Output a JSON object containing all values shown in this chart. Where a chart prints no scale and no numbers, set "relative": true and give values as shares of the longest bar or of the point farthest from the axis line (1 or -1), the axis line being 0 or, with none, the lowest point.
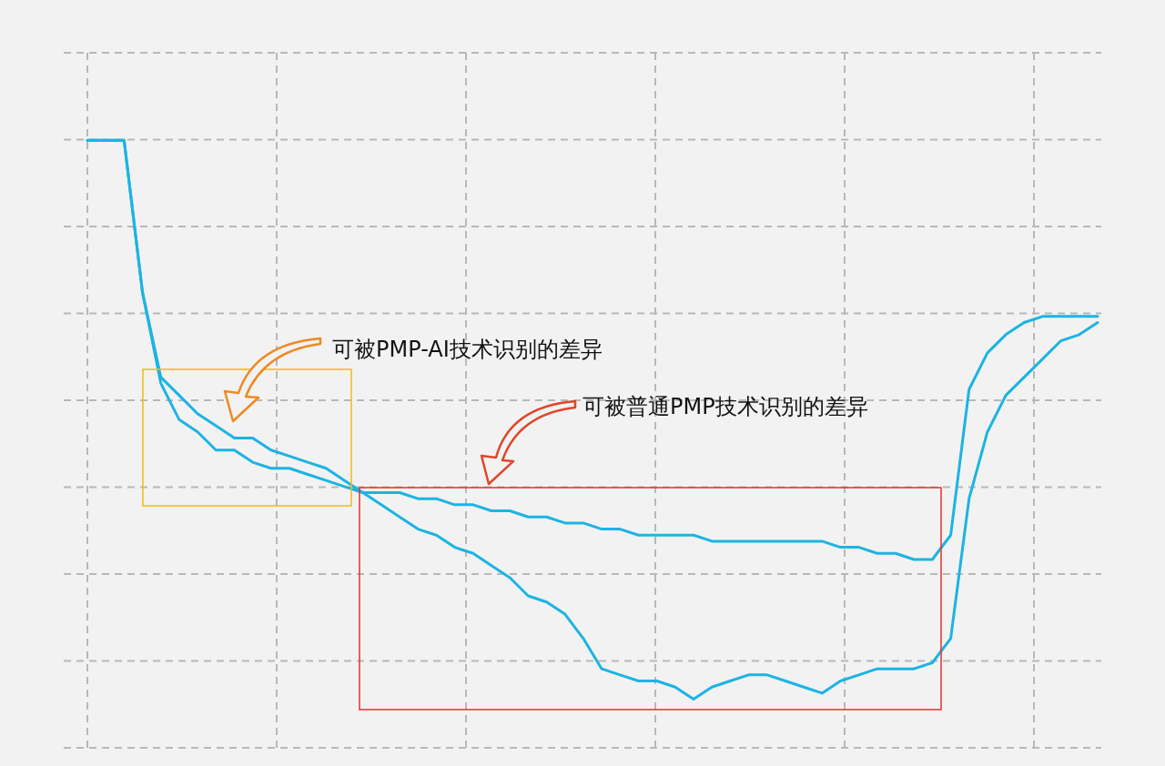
{
  "chart_data": {
    "type": "line",
    "relative": true,
    "grid": true,
    "categories": [
      null,
      null,
      null,
      null,
      null,
      null,
      null,
      null,
      null,
      null,
      null,
      null,
      null,
      null,
      null,
      null,
      null,
      null,
      null,
      null,
      null,
      null,
      null,
      null,
      null,
      null,
      null,
      null,
      null,
      null,
      null,
      null,
      null,
      null,
      null,
      null,
      null,
      null,
      null,
      null,
      null,
      null,
      null,
      null,
      null,
      null,
      null,
      null,
      null,
      null,
      null,
      null,
      null,
      null,
      null,
      null
    ],
    "series": [
      {
        "color": "#1cb4e3",
        "values": [
          1.0,
          1.0,
          1.0,
          0.75,
          0.61,
          0.58,
          0.55,
          0.53,
          0.51,
          0.51,
          0.49,
          0.48,
          0.47,
          0.46,
          0.44,
          0.42,
          0.42,
          0.42,
          0.41,
          0.41,
          0.4,
          0.4,
          0.39,
          0.39,
          0.38,
          0.38,
          0.37,
          0.37,
          0.36,
          0.36,
          0.35,
          0.35,
          0.35,
          0.35,
          0.34,
          0.34,
          0.34,
          0.34,
          0.34,
          0.34,
          0.34,
          0.33,
          0.33,
          0.32,
          0.32,
          0.31,
          0.31,
          0.35,
          0.59,
          0.65,
          0.68,
          0.7,
          0.71,
          0.71,
          0.71,
          0.71
        ]
      },
      {
        "color": "#1cb4e3",
        "values": [
          1.0,
          1.0,
          1.0,
          0.75,
          0.6,
          0.54,
          0.52,
          0.49,
          0.49,
          0.47,
          0.46,
          0.46,
          0.45,
          0.44,
          0.43,
          0.42,
          0.4,
          0.38,
          0.36,
          0.35,
          0.33,
          0.32,
          0.3,
          0.28,
          0.25,
          0.24,
          0.22,
          0.18,
          0.13,
          0.12,
          0.11,
          0.11,
          0.1,
          0.08,
          0.1,
          0.11,
          0.12,
          0.12,
          0.11,
          0.1,
          0.09,
          0.11,
          0.12,
          0.13,
          0.13,
          0.13,
          0.14,
          0.18,
          0.41,
          0.52,
          0.58,
          0.61,
          0.64,
          0.67,
          0.68,
          0.7
        ]
      }
    ],
    "annotations": [
      "可被PMP-AI技术识别的差异",
      "可被普通PMP技术识别的差异"
    ]
  }
}
